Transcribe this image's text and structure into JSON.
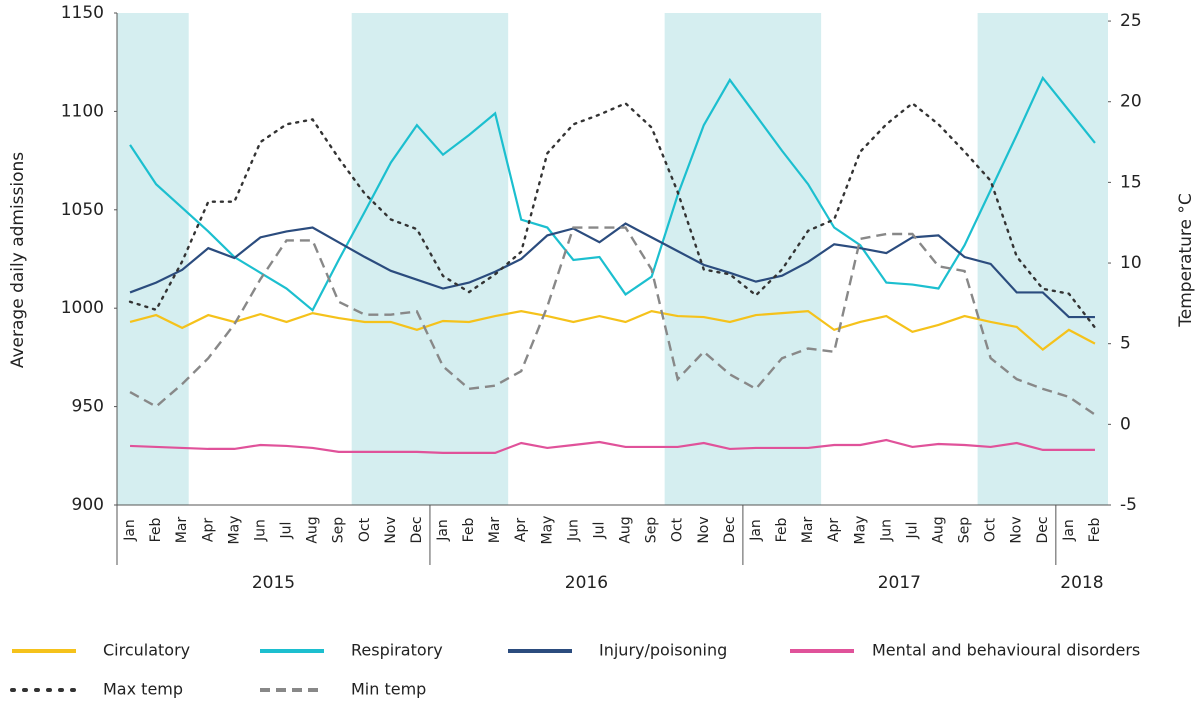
{
  "chart_data": {
    "type": "line",
    "y_label": "Average daily admissions",
    "y2_label": "Temperature °C",
    "categories": [
      "Jan",
      "Feb",
      "Mar",
      "Apr",
      "May",
      "Jun",
      "Jul",
      "Aug",
      "Sep",
      "Oct",
      "Nov",
      "Dec",
      "Jan",
      "Feb",
      "Mar",
      "Apr",
      "May",
      "Jun",
      "Jul",
      "Aug",
      "Sep",
      "Oct",
      "Nov",
      "Dec",
      "Jan",
      "Feb",
      "Mar",
      "Apr",
      "May",
      "Jun",
      "Jul",
      "Aug",
      "Sep",
      "Oct",
      "Nov",
      "Dec",
      "Jan",
      "Feb"
    ],
    "years": [
      "2015",
      "2016",
      "2017",
      "2018"
    ],
    "ylim": [
      900,
      1150
    ],
    "yticks": [
      900,
      950,
      1000,
      1050,
      1100,
      1150
    ],
    "y2lim": [
      -5,
      25.5
    ],
    "y2ticks": [
      -5,
      0,
      5,
      10,
      15,
      20,
      25
    ],
    "series": [
      {
        "name": "Circulatory",
        "color": "#f5c21b",
        "style": "solid",
        "values": [
          993,
          996.5,
          990,
          996.5,
          993,
          997,
          993,
          997.5,
          995,
          993,
          993,
          989,
          993.5,
          993,
          996,
          998.5,
          996,
          993,
          996,
          993,
          998.5,
          996,
          995.5,
          993,
          996.5,
          997.5,
          998.5,
          989,
          993,
          996,
          988,
          991.5,
          996,
          993,
          990.5,
          979,
          989,
          982
        ]
      },
      {
        "name": "Respiratory",
        "color": "#1cbfcf",
        "style": "solid",
        "values": [
          1083,
          1063,
          1051,
          1039,
          1026,
          1018,
          1010,
          999,
          1024.5,
          1049,
          1074,
          1093,
          1078,
          1088,
          1099,
          1045,
          1041,
          1024.5,
          1026,
          1007,
          1016,
          1057.5,
          1093,
          1116,
          1098,
          1080,
          1063,
          1041,
          1032,
          1013,
          1012,
          1010,
          1032,
          1060,
          1088,
          1117,
          1100.5,
          1084
        ]
      },
      {
        "name": "Injury/poisoning",
        "color": "#2b4c7e",
        "style": "solid",
        "values": [
          1008,
          1013,
          1019.5,
          1030.5,
          1025.5,
          1036,
          1039,
          1041,
          1033.5,
          1026,
          1019,
          1014.5,
          1010,
          1013,
          1018.5,
          1025,
          1037,
          1040.5,
          1033.5,
          1043,
          1036,
          1029,
          1022,
          1018,
          1013.5,
          1016.5,
          1023.5,
          1032.5,
          1030.5,
          1028,
          1036,
          1037,
          1026,
          1022.5,
          1008,
          1008,
          995.5,
          995.5
        ]
      },
      {
        "name": "Mental and behavioural disorders",
        "color": "#e0529a",
        "style": "solid",
        "values": [
          930,
          929.5,
          929,
          928.5,
          928.5,
          930.5,
          930,
          929,
          927,
          927,
          927,
          927,
          926.5,
          926.5,
          926.5,
          931.5,
          929,
          930.5,
          932,
          929.5,
          929.5,
          929.5,
          931.5,
          928.5,
          929,
          929,
          929,
          930.5,
          930.5,
          933,
          929.5,
          931,
          930.5,
          929.5,
          931.5,
          928,
          928,
          928
        ]
      },
      {
        "name": "Max temp",
        "color": "#333333",
        "style": "dotted",
        "axis": "y2",
        "values": [
          7.6,
          7.1,
          10.1,
          13.8,
          13.8,
          17.5,
          18.6,
          18.9,
          16.5,
          14.3,
          12.7,
          12.1,
          9.2,
          8.2,
          9.3,
          10.7,
          16.8,
          18.6,
          19.2,
          19.9,
          18.4,
          14.4,
          9.6,
          9.3,
          8,
          9.6,
          12,
          12.7,
          16.9,
          18.6,
          19.9,
          18.6,
          16.9,
          15.1,
          10.4,
          8.4,
          8.1,
          6
        ]
      },
      {
        "name": "Min temp",
        "color": "#888888",
        "style": "dashed",
        "axis": "y2",
        "values": [
          2,
          1.1,
          2.5,
          4.1,
          6.2,
          9,
          11.4,
          11.4,
          7.6,
          6.8,
          6.8,
          7,
          3.6,
          2.2,
          2.4,
          3.3,
          7.3,
          12.2,
          12.2,
          12.2,
          9.6,
          2.8,
          4.5,
          3.1,
          2.2,
          4.1,
          4.7,
          4.5,
          11.5,
          11.8,
          11.8,
          9.8,
          9.5,
          4.1,
          2.8,
          2.2,
          1.7,
          0.6
        ]
      }
    ]
  }
}
